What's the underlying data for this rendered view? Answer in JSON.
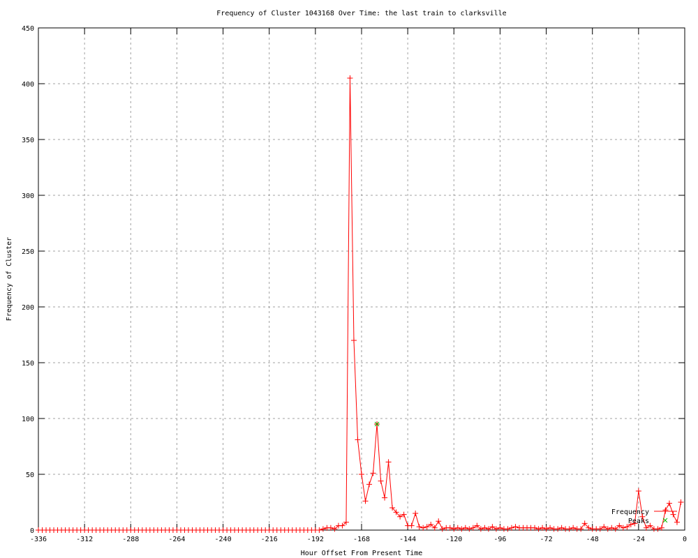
{
  "chart_data": {
    "type": "line",
    "title": "Frequency of Cluster 1043168 Over Time: the last train to clarksville",
    "xlabel": "Hour Offset From Present Time",
    "ylabel": "Frequency of Cluster",
    "xlim": [
      -336,
      0
    ],
    "ylim": [
      0,
      450
    ],
    "xticks": [
      -336,
      -312,
      -288,
      -264,
      -240,
      -216,
      -192,
      -168,
      -144,
      -120,
      -96,
      -72,
      -48,
      -24,
      0
    ],
    "yticks": [
      0,
      50,
      100,
      150,
      200,
      250,
      300,
      350,
      400,
      450
    ],
    "grid": true,
    "legend_placement": "bottom-right",
    "x_start": -336,
    "x_step": 2,
    "series": [
      {
        "name": "Frequency",
        "color": "#ff0000",
        "marker": "plus",
        "values": [
          0,
          0,
          0,
          0,
          0,
          0,
          0,
          0,
          0,
          0,
          0,
          0,
          0,
          0,
          0,
          0,
          0,
          0,
          0,
          0,
          0,
          0,
          0,
          0,
          0,
          0,
          0,
          0,
          0,
          0,
          0,
          0,
          0,
          0,
          0,
          0,
          0,
          0,
          0,
          0,
          0,
          0,
          0,
          0,
          0,
          0,
          0,
          0,
          0,
          0,
          0,
          0,
          0,
          0,
          0,
          0,
          0,
          0,
          0,
          0,
          0,
          0,
          0,
          0,
          0,
          0,
          0,
          0,
          0,
          0,
          0,
          0,
          0,
          0,
          1,
          2,
          2,
          1,
          4,
          4,
          7,
          405,
          170,
          81,
          50,
          26,
          41,
          51,
          95,
          44,
          29,
          61,
          20,
          16,
          12,
          14,
          4,
          4,
          15,
          3,
          2,
          3,
          5,
          2,
          8,
          1,
          2,
          2,
          1,
          2,
          1,
          2,
          1,
          2,
          4,
          1,
          2,
          1,
          3,
          1,
          2,
          1,
          1,
          2,
          3,
          2,
          2,
          2,
          2,
          2,
          1,
          2,
          1,
          2,
          1,
          1,
          2,
          1,
          1,
          2,
          1,
          1,
          6,
          2,
          1,
          1,
          1,
          3,
          1,
          2,
          1,
          4,
          2,
          3,
          5,
          6,
          35,
          12,
          2,
          4,
          1,
          1,
          2,
          18,
          24,
          14,
          7,
          25
        ]
      },
      {
        "name": "Peaks",
        "color": "#00c000",
        "marker": "cross",
        "points": [
          [
            -160,
            95
          ]
        ]
      }
    ]
  }
}
